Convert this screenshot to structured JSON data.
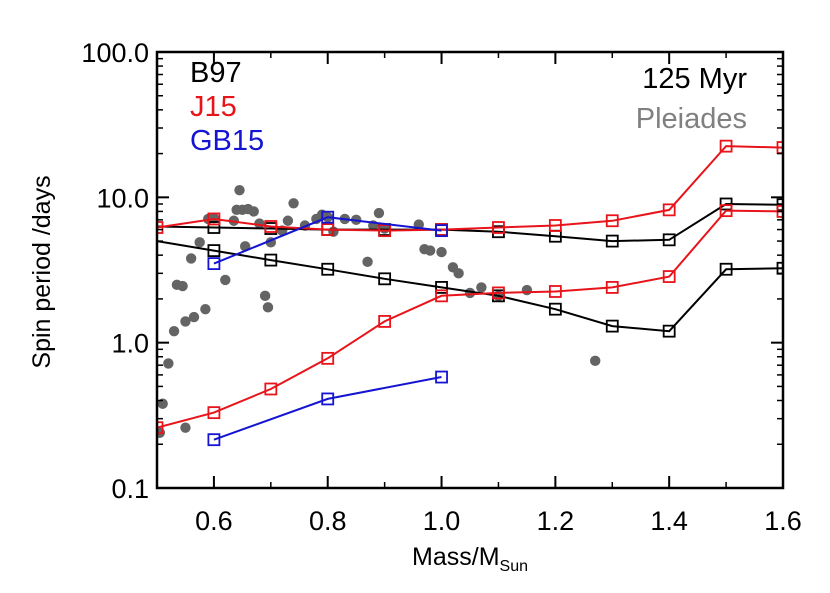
{
  "chart_data": {
    "type": "scatter",
    "xlabel": "Mass/M",
    "xlabel_sub": "Sun",
    "ylabel": "Spin period /days",
    "xlim": [
      0.5,
      1.6
    ],
    "ylim": [
      0.1,
      100.0
    ],
    "yscale": "log",
    "grid": false,
    "x_ticks": [
      "0.6",
      "0.8",
      "1.0",
      "1.2",
      "1.4",
      "1.6"
    ],
    "y_ticks": [
      "0.1",
      "1.0",
      "10.0",
      "100.0"
    ],
    "legend": {
      "placement": "top-left",
      "entries": [
        {
          "label": "B97",
          "color": "#000000"
        },
        {
          "label": "J15",
          "color": "#e8141a"
        },
        {
          "label": "GB15",
          "color": "#1414d2"
        }
      ]
    },
    "annotation": {
      "age": "125 Myr",
      "cluster": "Pleiades",
      "cluster_color": "#808080"
    },
    "scatter_series": {
      "name": "Pleiades",
      "color": "#646464",
      "points": [
        [
          0.505,
          0.24
        ],
        [
          0.51,
          0.38
        ],
        [
          0.52,
          0.72
        ],
        [
          0.53,
          1.2
        ],
        [
          0.535,
          2.5
        ],
        [
          0.545,
          2.45
        ],
        [
          0.55,
          1.4
        ],
        [
          0.55,
          0.26
        ],
        [
          0.56,
          3.8
        ],
        [
          0.565,
          1.5
        ],
        [
          0.575,
          4.9
        ],
        [
          0.585,
          1.7
        ],
        [
          0.59,
          7.1
        ],
        [
          0.6,
          7.2
        ],
        [
          0.62,
          2.7
        ],
        [
          0.635,
          6.9
        ],
        [
          0.64,
          8.2
        ],
        [
          0.645,
          11.2
        ],
        [
          0.65,
          8.2
        ],
        [
          0.655,
          4.6
        ],
        [
          0.66,
          8.3
        ],
        [
          0.67,
          8.0
        ],
        [
          0.68,
          6.6
        ],
        [
          0.69,
          2.1
        ],
        [
          0.695,
          1.75
        ],
        [
          0.7,
          4.9
        ],
        [
          0.72,
          5.9
        ],
        [
          0.73,
          6.9
        ],
        [
          0.74,
          9.1
        ],
        [
          0.76,
          6.4
        ],
        [
          0.78,
          7.1
        ],
        [
          0.79,
          7.6
        ],
        [
          0.8,
          7.3
        ],
        [
          0.81,
          5.8
        ],
        [
          0.83,
          7.1
        ],
        [
          0.85,
          7.0
        ],
        [
          0.87,
          3.6
        ],
        [
          0.88,
          6.4
        ],
        [
          0.89,
          7.8
        ],
        [
          0.9,
          6.1
        ],
        [
          0.96,
          6.5
        ],
        [
          0.97,
          4.4
        ],
        [
          0.98,
          4.3
        ],
        [
          1.0,
          4.2
        ],
        [
          1.02,
          3.3
        ],
        [
          1.03,
          3.0
        ],
        [
          1.05,
          2.2
        ],
        [
          1.07,
          2.4
        ],
        [
          1.1,
          2.1
        ],
        [
          1.15,
          2.3
        ],
        [
          1.27,
          0.75
        ]
      ]
    },
    "series": [
      {
        "name": "B97",
        "color": "#000000",
        "x": [
          0.5,
          0.6,
          0.7,
          0.8,
          0.9,
          1.0,
          1.1,
          1.2,
          1.3,
          1.4,
          1.5,
          1.6
        ],
        "y": [
          6.3,
          6.2,
          6.1,
          6.0,
          6.0,
          6.0,
          5.8,
          5.4,
          5.0,
          5.1,
          9.0,
          8.9
        ],
        "marker_start": 1
      },
      {
        "name": "B97",
        "color": "#000000",
        "x": [
          0.5,
          0.6,
          0.7,
          0.8,
          0.9,
          1.0,
          1.1,
          1.2,
          1.3,
          1.4,
          1.5,
          1.6
        ],
        "y": [
          5.0,
          4.3,
          3.7,
          3.2,
          2.75,
          2.4,
          2.1,
          1.7,
          1.3,
          1.2,
          3.2,
          3.25
        ],
        "marker_start": 1
      },
      {
        "name": "J15",
        "color": "#e8141a",
        "x": [
          0.5,
          0.6,
          0.7,
          0.8,
          0.9,
          1.0,
          1.1,
          1.2,
          1.3,
          1.4,
          1.5,
          1.6
        ],
        "y": [
          6.2,
          7.1,
          6.3,
          6.0,
          5.9,
          6.0,
          6.2,
          6.4,
          6.9,
          8.2,
          22.5,
          22.0
        ],
        "marker_start": 0
      },
      {
        "name": "J15",
        "color": "#e8141a",
        "x": [
          0.5,
          0.6,
          0.7,
          0.8,
          0.9,
          1.0,
          1.1,
          1.2,
          1.3,
          1.4,
          1.5,
          1.6
        ],
        "y": [
          0.26,
          0.33,
          0.48,
          0.78,
          1.4,
          2.1,
          2.2,
          2.25,
          2.4,
          2.85,
          8.1,
          8.0
        ],
        "marker_start": 0
      },
      {
        "name": "GB15",
        "color": "#1414d2",
        "x": [
          0.6,
          0.8,
          1.0
        ],
        "y": [
          3.5,
          7.3,
          5.9
        ],
        "marker_start": 0
      },
      {
        "name": "GB15",
        "color": "#1414d2",
        "x": [
          0.6,
          0.8,
          1.0
        ],
        "y": [
          0.215,
          0.41,
          0.58
        ],
        "marker_start": 0
      }
    ]
  }
}
